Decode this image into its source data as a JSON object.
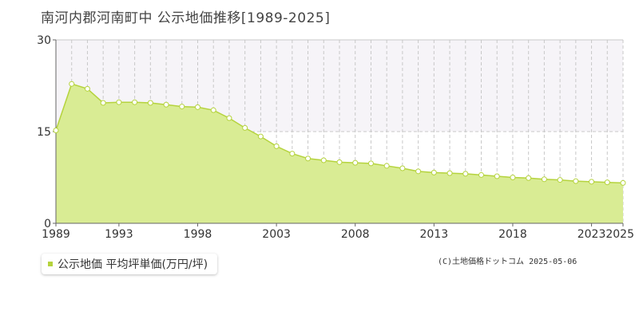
{
  "page": {
    "title": "南河内郡河南町中 公示地価推移[1989-2025]",
    "copyright": "(C)土地価格ドットコム 2025-05-06"
  },
  "legend": {
    "label": "公示地価 平均坪単価(万円/坪)"
  },
  "colors": {
    "area_fill": "#d9ec94",
    "line": "#b5d33d",
    "point_fill": "#ffffff",
    "grid": "#c8c8c8",
    "shade_band": "#f6f4f8",
    "axis": "#666666",
    "tick_text": "#333333"
  },
  "chart_data": {
    "type": "area",
    "title": "南河内郡河南町中 公示地価推移[1989-2025]",
    "xlabel": "",
    "ylabel": "",
    "x": [
      1989,
      1990,
      1991,
      1992,
      1993,
      1994,
      1995,
      1996,
      1997,
      1998,
      1999,
      2000,
      2001,
      2002,
      2003,
      2004,
      2005,
      2006,
      2007,
      2008,
      2009,
      2010,
      2011,
      2012,
      2013,
      2014,
      2015,
      2016,
      2017,
      2018,
      2019,
      2020,
      2021,
      2022,
      2023,
      2024,
      2025
    ],
    "series": [
      {
        "name": "公示地価 平均坪単価(万円/坪)",
        "values": [
          15.2,
          22.8,
          22.0,
          19.7,
          19.8,
          19.8,
          19.7,
          19.4,
          19.1,
          19.0,
          18.5,
          17.2,
          15.6,
          14.2,
          12.6,
          11.4,
          10.6,
          10.3,
          10.0,
          9.9,
          9.8,
          9.4,
          9.0,
          8.5,
          8.3,
          8.2,
          8.1,
          7.9,
          7.7,
          7.5,
          7.4,
          7.2,
          7.1,
          6.9,
          6.8,
          6.7,
          6.6
        ]
      }
    ],
    "xlim": [
      1989,
      2025
    ],
    "ylim": [
      0,
      30
    ],
    "y_ticks": [
      "0",
      "15",
      "30"
    ],
    "x_ticks": [
      "1989",
      "1993",
      "1998",
      "2003",
      "2008",
      "2013",
      "2018",
      "2023",
      "2025"
    ],
    "grid": true,
    "legend_position": "bottom-left"
  }
}
